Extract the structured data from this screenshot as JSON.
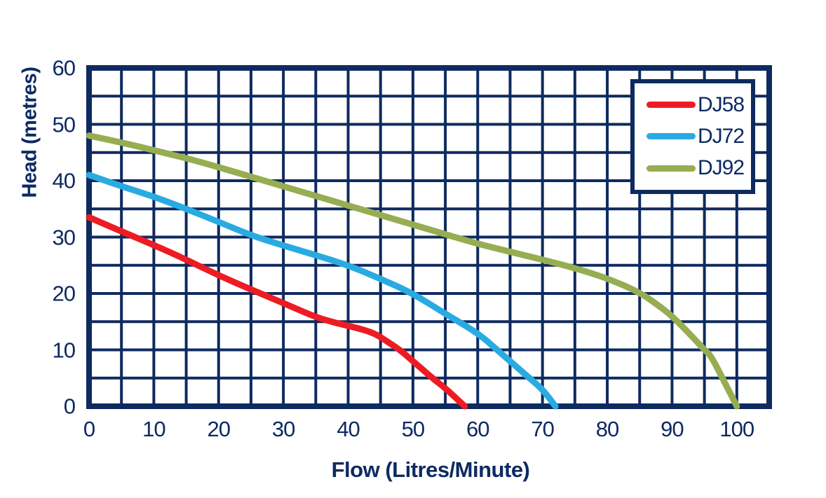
{
  "page": {
    "background": "#ffffff"
  },
  "chart_data": {
    "type": "line",
    "title": "",
    "xlabel": "Flow (Litres/Minute)",
    "ylabel": "Head (metres)",
    "xlim": [
      0,
      105
    ],
    "ylim": [
      0,
      60
    ],
    "grid": true,
    "grid_step_x": 5,
    "grid_step_y": 5,
    "grid_color": "#0e2a60",
    "axis_text_color": "#0d2a63",
    "x_ticks": [
      0,
      10,
      20,
      30,
      40,
      50,
      60,
      70,
      80,
      90,
      100
    ],
    "y_ticks": [
      0,
      10,
      20,
      30,
      40,
      50,
      60
    ],
    "legend_position": "top-right",
    "series": [
      {
        "name": "DJ58",
        "color": "#ed1c24",
        "points": [
          [
            0,
            33.5
          ],
          [
            5,
            31
          ],
          [
            10,
            28.6
          ],
          [
            15,
            26
          ],
          [
            20,
            23.2
          ],
          [
            25,
            20.7
          ],
          [
            30,
            18.3
          ],
          [
            35,
            15.8
          ],
          [
            38,
            14.8
          ],
          [
            41,
            14
          ],
          [
            44,
            13
          ],
          [
            46,
            11.5
          ],
          [
            48,
            10
          ],
          [
            50,
            8
          ],
          [
            53,
            5
          ],
          [
            55,
            3.2
          ],
          [
            58,
            0
          ]
        ]
      },
      {
        "name": "DJ72",
        "color": "#29abe2",
        "points": [
          [
            0,
            41
          ],
          [
            5,
            39
          ],
          [
            10,
            37.2
          ],
          [
            15,
            35
          ],
          [
            20,
            32.7
          ],
          [
            25,
            30.3
          ],
          [
            30,
            28.5
          ],
          [
            35,
            26.8
          ],
          [
            40,
            25
          ],
          [
            45,
            22.6
          ],
          [
            50,
            20
          ],
          [
            55,
            16.4
          ],
          [
            60,
            13
          ],
          [
            63,
            10
          ],
          [
            65,
            8
          ],
          [
            68,
            5
          ],
          [
            70,
            3
          ],
          [
            72,
            0
          ]
        ]
      },
      {
        "name": "DJ92",
        "color": "#96ad52",
        "points": [
          [
            0,
            48
          ],
          [
            5,
            46.8
          ],
          [
            10,
            45.4
          ],
          [
            15,
            44
          ],
          [
            20,
            42.4
          ],
          [
            25,
            40.7
          ],
          [
            30,
            39
          ],
          [
            35,
            37.3
          ],
          [
            40,
            35.6
          ],
          [
            45,
            33.9
          ],
          [
            50,
            32.2
          ],
          [
            55,
            30.5
          ],
          [
            60,
            28.8
          ],
          [
            65,
            27.4
          ],
          [
            70,
            26
          ],
          [
            75,
            24.5
          ],
          [
            80,
            22.7
          ],
          [
            85,
            20.2
          ],
          [
            88,
            17.8
          ],
          [
            90,
            16
          ],
          [
            93,
            12.5
          ],
          [
            95,
            10
          ],
          [
            96,
            9
          ],
          [
            98,
            4.5
          ],
          [
            100,
            0
          ]
        ]
      }
    ]
  }
}
